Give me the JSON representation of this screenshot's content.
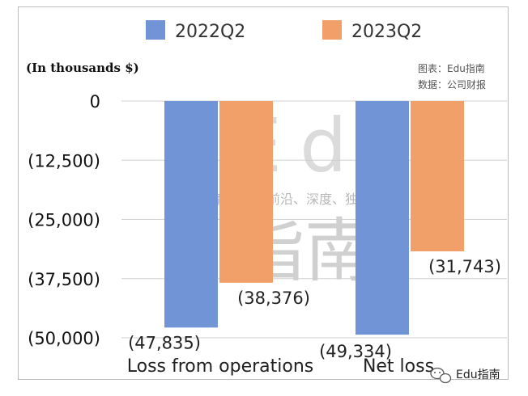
{
  "chart_data": {
    "type": "bar",
    "unit_label": "(In thousands $)",
    "categories": [
      "Loss from operations",
      "Net loss"
    ],
    "series": [
      {
        "name": "2022Q2",
        "values": [
          -47835,
          -49334
        ],
        "labels": [
          "(47,835)",
          "(49,334)"
        ],
        "color": "#7094d6"
      },
      {
        "name": "2023Q2",
        "values": [
          -38376,
          -31743
        ],
        "labels": [
          "(38,376)",
          "(31,743)"
        ],
        "color": "#f1a06a"
      }
    ],
    "yticks": [
      0,
      -12500,
      -25000,
      -37500,
      -50000
    ],
    "ytick_labels": [
      "0",
      "(12,500)",
      "(25,000)",
      "(37,500)",
      "(50,000)"
    ],
    "ylim": [
      -50000,
      0
    ],
    "grid": true,
    "legend_position": "top"
  },
  "source": {
    "line1": "图表：Edu指南",
    "line2": "数据：公司财报"
  },
  "watermark": {
    "big": "Edu",
    "tagline": "教育行业，前沿、深度、独家",
    "cn": "指南"
  },
  "brand": {
    "text": "Edu指南",
    "icon": "wechat-icon"
  }
}
